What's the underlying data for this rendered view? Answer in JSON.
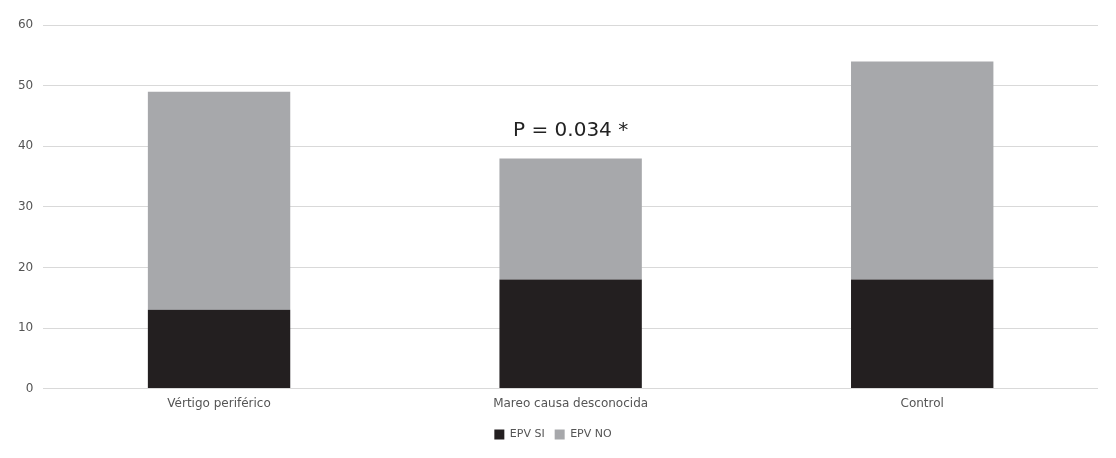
{
  "chart_data": {
    "type": "bar",
    "stacked": true,
    "categories": [
      "Vértigo periférico",
      "Mareo causa desconocida",
      "Control"
    ],
    "series": [
      {
        "name": "EPV SI",
        "color": "#231f20",
        "values": [
          13,
          18,
          18
        ]
      },
      {
        "name": "EPV NO",
        "color": "#a7a8ab",
        "values": [
          36,
          20,
          36
        ]
      }
    ],
    "ylim": [
      0,
      60
    ],
    "yticks": [
      0,
      10,
      20,
      30,
      40,
      50,
      60
    ],
    "grid": "y",
    "legend": "bottom",
    "annotations": [
      "P = 0.034 *"
    ]
  }
}
